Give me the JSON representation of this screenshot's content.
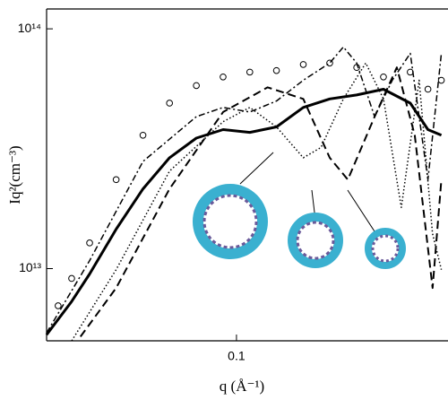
{
  "chart_data": {
    "type": "line",
    "xlabel": "q (Å⁻¹)",
    "ylabel": "Iq²(cm⁻³)",
    "xlog": true,
    "ylog": true,
    "xlim": [
      0.0352,
      0.32
    ],
    "ylim": [
      5000000000000,
      121000000000000
    ],
    "xticks": [
      0.1
    ],
    "yticks": [
      {
        "value": 10000000000000,
        "label": "10¹³"
      },
      {
        "value": 100000000000000,
        "label": "10¹⁴"
      }
    ],
    "series": [
      {
        "style": "markers",
        "color": "#000000",
        "x": [
          0.0375,
          0.0404,
          0.0446,
          0.0516,
          0.0598,
          0.0692,
          0.0802,
          0.0929,
          0.1076,
          0.1246,
          0.1444,
          0.167,
          0.1937,
          0.2244,
          0.26,
          0.2866,
          0.3085
        ],
        "values": [
          7000000000000,
          9100000000000,
          12800000000000,
          23500000000000,
          36000000000000,
          49000000000000,
          58000000000000,
          63000000000000,
          66000000000000,
          67000000000000,
          71000000000000,
          72000000000000,
          69000000000000,
          63000000000000,
          66000000000000,
          56000000000000,
          61000000000000
        ]
      },
      {
        "style": "solid",
        "color": "#000000",
        "x": [
          0.0352,
          0.0404,
          0.0446,
          0.0516,
          0.0598,
          0.0692,
          0.0802,
          0.0929,
          0.1076,
          0.1246,
          0.1444,
          0.167,
          0.1937,
          0.2244,
          0.26,
          0.2866,
          0.3085
        ],
        "values": [
          5300000000000,
          7300000000000,
          9500000000000,
          14600000000000,
          21500000000000,
          29000000000000,
          35000000000000,
          38000000000000,
          37000000000000,
          39000000000000,
          47000000000000,
          51000000000000,
          53000000000000,
          56000000000000,
          49000000000000,
          38000000000000,
          36000000000000
        ]
      },
      {
        "style": "dashdot",
        "color": "#000000",
        "x": [
          0.0352,
          0.0446,
          0.0598,
          0.0802,
          0.0929,
          0.1076,
          0.1246,
          0.1444,
          0.167,
          0.18,
          0.1937,
          0.2138,
          0.2355,
          0.26,
          0.2866,
          0.3085
        ],
        "values": [
          5400000000000,
          10800000000000,
          28000000000000,
          43000000000000,
          47000000000000,
          45000000000000,
          50000000000000,
          61000000000000,
          72000000000000,
          84000000000000,
          72000000000000,
          43000000000000,
          61000000000000,
          79000000000000,
          23500000000000,
          79000000000000
        ]
      },
      {
        "style": "dotted",
        "color": "#000000",
        "x": [
          0.0404,
          0.0516,
          0.0692,
          0.0929,
          0.1076,
          0.1246,
          0.1444,
          0.1592,
          0.18,
          0.2036,
          0.2244,
          0.2475,
          0.273,
          0.2938,
          0.3085
        ],
        "values": [
          5000000000000,
          9900000000000,
          25500000000000,
          41000000000000,
          47000000000000,
          39000000000000,
          29000000000000,
          32000000000000,
          51000000000000,
          72000000000000,
          51000000000000,
          18000000000000,
          61000000000000,
          14000000000000,
          9900000000000
        ]
      },
      {
        "style": "dashed",
        "color": "#000000",
        "x": [
          0.0424,
          0.0516,
          0.0692,
          0.0929,
          0.1187,
          0.1444,
          0.167,
          0.1845,
          0.2138,
          0.2415,
          0.2665,
          0.294,
          0.3085
        ],
        "values": [
          5200000000000,
          8300000000000,
          21500000000000,
          45000000000000,
          57000000000000,
          51000000000000,
          29000000000000,
          23500000000000,
          43000000000000,
          69000000000000,
          36000000000000,
          8300000000000,
          23500000000000
        ]
      }
    ]
  }
}
